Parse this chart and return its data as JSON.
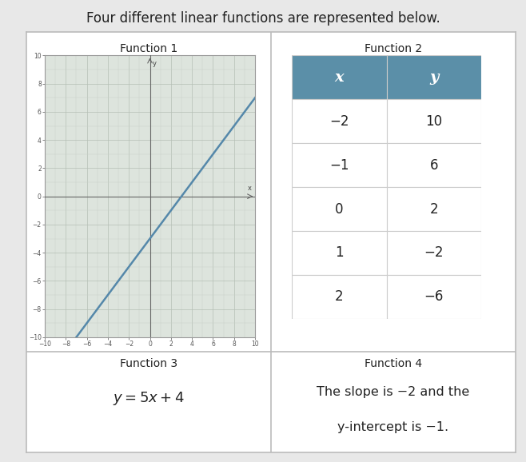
{
  "title_text": "Four different linear functions are represented below.",
  "func1_label": "Function 1",
  "func2_label": "Function 2",
  "func3_label": "Function 3",
  "func4_label": "Function 4",
  "func3_eq": "$y = 5x + 4$",
  "func4_text1": "The slope is −2 and the",
  "func4_text2": "y-intercept is −1.",
  "table_header": [
    "x",
    "y"
  ],
  "table_header_color": "#5b8fa8",
  "table_data": [
    [
      "−2",
      "10"
    ],
    [
      "−1",
      "6"
    ],
    [
      "0",
      "2"
    ],
    [
      "1",
      "−2"
    ],
    [
      "2",
      "−6"
    ]
  ],
  "table_bg": "#ffffff",
  "table_row_alt": "#f2f2f2",
  "table_border_color": "#cccccc",
  "graph_bg": "#dde4dd",
  "grid_color_major": "#b5bfb5",
  "grid_color_minor": "#c8d0c8",
  "axis_color": "#666666",
  "line_color": "#5588aa",
  "line_slope": 1,
  "line_intercept": -3,
  "x_range": [
    -10,
    10
  ],
  "y_range": [
    -10,
    10
  ],
  "outer_border_color": "#bbbbbb",
  "bg_color": "#e8e8e8",
  "cell_bg": "#f8f8f8",
  "font_size_title": 12,
  "font_size_func_label": 10,
  "font_size_table": 11,
  "font_size_eq": 12,
  "tick_fontsize": 5.5
}
